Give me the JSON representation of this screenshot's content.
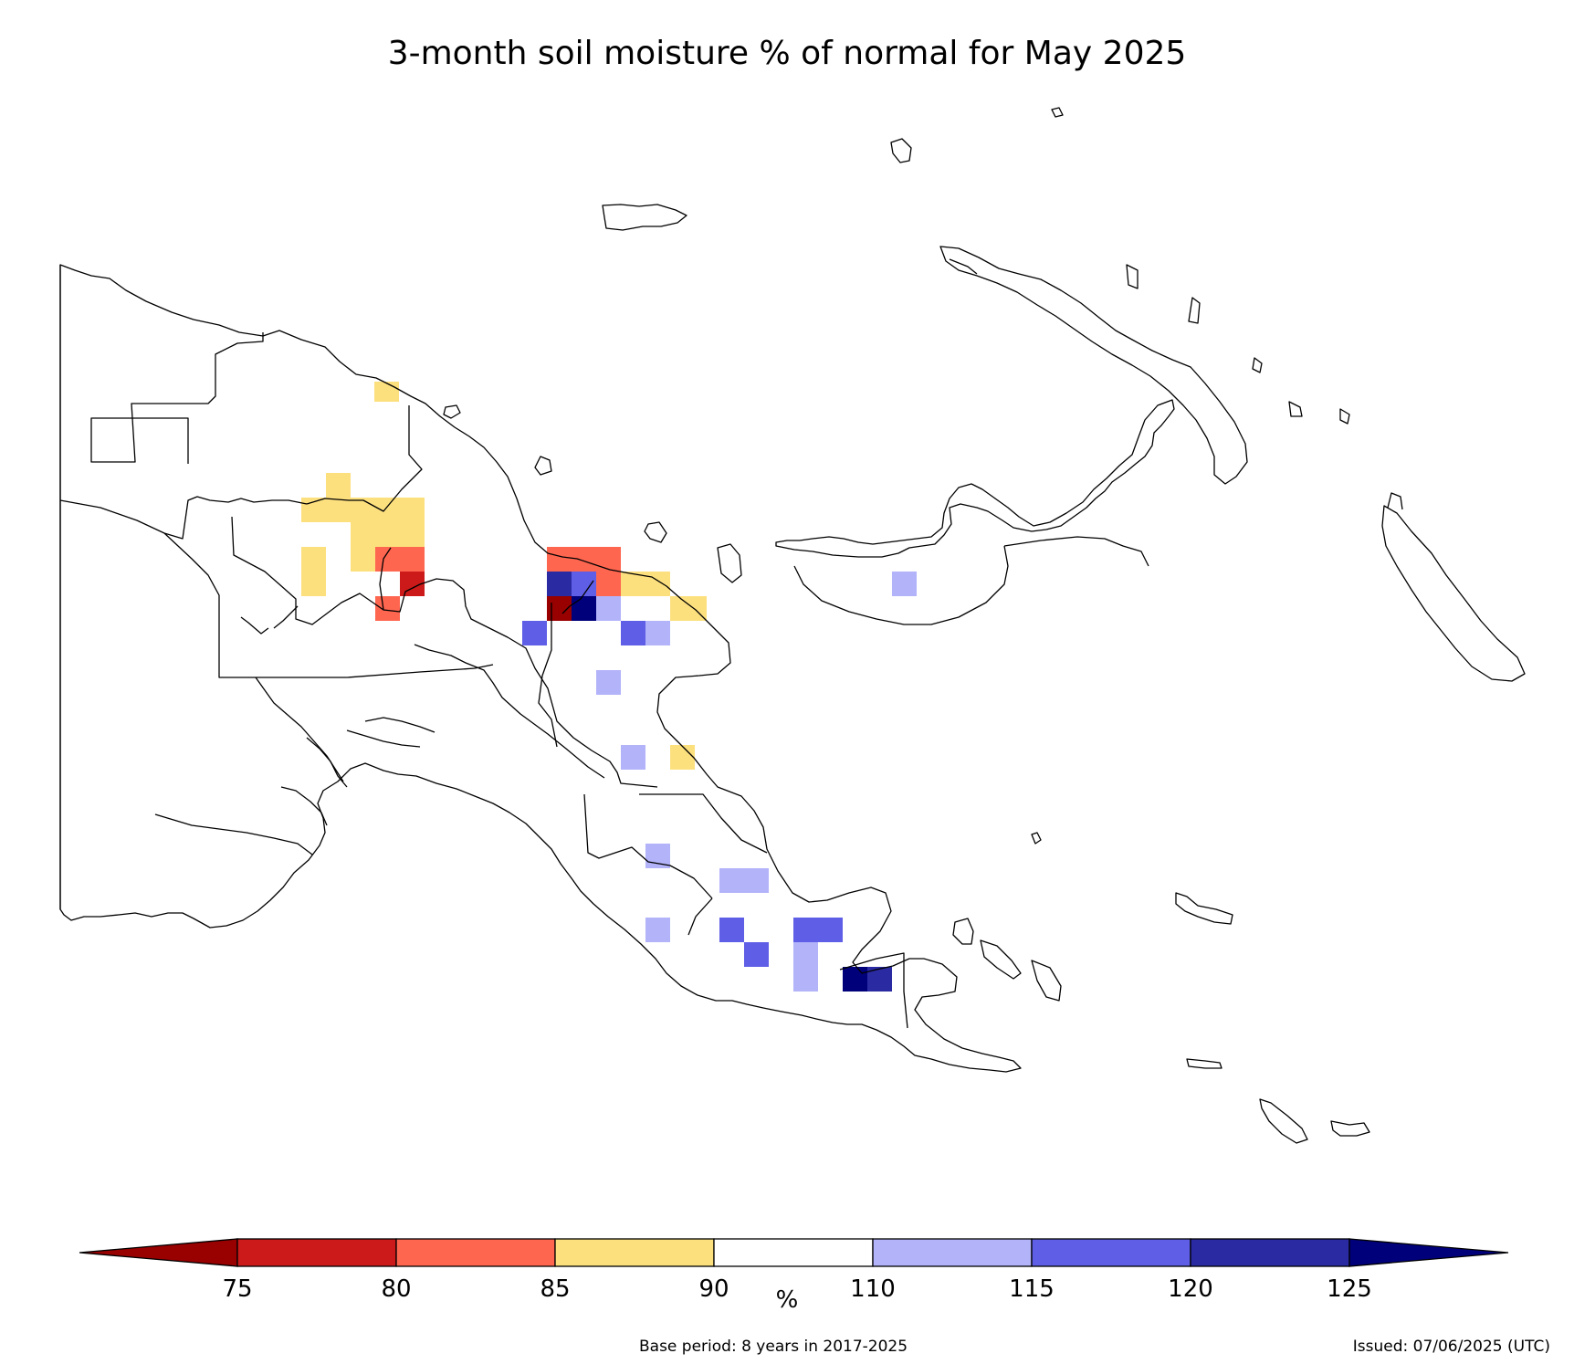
{
  "title": "3-month soil moisture % of normal for May 2025",
  "colorbar": {
    "unit": "%",
    "ticks": [
      "75",
      "80",
      "85",
      "90",
      "110",
      "115",
      "120",
      "125"
    ],
    "bins": [
      {
        "range": "<75",
        "color": "#990000"
      },
      {
        "range": "75-80",
        "color": "#cc1a1a"
      },
      {
        "range": "80-85",
        "color": "#ff6650"
      },
      {
        "range": "85-90",
        "color": "#fde07e"
      },
      {
        "range": "90-110",
        "color": "#ffffff"
      },
      {
        "range": "110-115",
        "color": "#b3b3fa"
      },
      {
        "range": "115-120",
        "color": "#5e5ee6"
      },
      {
        "range": "120-125",
        "color": "#2a2aa3"
      },
      {
        "range": ">125",
        "color": "#00007a"
      }
    ]
  },
  "footer": {
    "base_period": "Base period: 8 years in 2017-2025",
    "issued": "Issued: 07/06/2025 (UTC)"
  }
}
